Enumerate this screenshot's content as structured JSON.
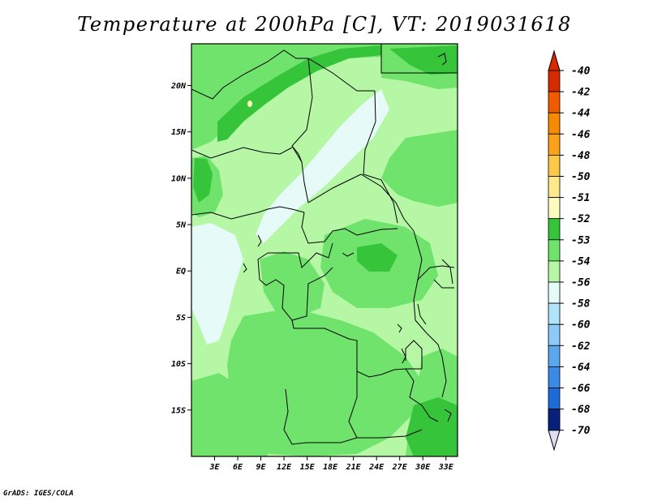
{
  "title": "Temperature at 200hPa [C], VT: 2019031618",
  "credit": "GrADS: IGES/COLA",
  "map": {
    "lat_ticks": [
      {
        "label": "20N",
        "value": 20
      },
      {
        "label": "15N",
        "value": 15
      },
      {
        "label": "10N",
        "value": 10
      },
      {
        "label": "5N",
        "value": 5
      },
      {
        "label": "EQ",
        "value": 0
      },
      {
        "label": "5S",
        "value": -5
      },
      {
        "label": "10S",
        "value": -10
      },
      {
        "label": "15S",
        "value": -15
      }
    ],
    "lon_ticks": [
      {
        "label": "3E",
        "value": 3
      },
      {
        "label": "6E",
        "value": 6
      },
      {
        "label": "9E",
        "value": 9
      },
      {
        "label": "12E",
        "value": 12
      },
      {
        "label": "15E",
        "value": 15
      },
      {
        "label": "18E",
        "value": 18
      },
      {
        "label": "21E",
        "value": 21
      },
      {
        "label": "24E",
        "value": 24
      },
      {
        "label": "27E",
        "value": 27
      },
      {
        "label": "30E",
        "value": 30
      },
      {
        "label": "33E",
        "value": 33
      }
    ],
    "extent": {
      "lon_min": 0,
      "lon_max": 34.5,
      "lat_min": -20,
      "lat_max": 24.5
    }
  },
  "colorbar": {
    "levels": [
      {
        "label": "-40",
        "color": "#d62b00"
      },
      {
        "label": "-42",
        "color": "#f05b00"
      },
      {
        "label": "-44",
        "color": "#f78a00"
      },
      {
        "label": "-46",
        "color": "#fba219"
      },
      {
        "label": "-48",
        "color": "#fcc94b"
      },
      {
        "label": "-50",
        "color": "#fde88c"
      },
      {
        "label": "-51",
        "color": "#fdfbc0"
      },
      {
        "label": "-52",
        "color": "#36c43b"
      },
      {
        "label": "-53",
        "color": "#6fe36b"
      },
      {
        "label": "-54",
        "color": "#b6f7a6"
      },
      {
        "label": "-56",
        "color": "#e6fbf8"
      },
      {
        "label": "-58",
        "color": "#b2e3fb"
      },
      {
        "label": "-60",
        "color": "#8ccaf7"
      },
      {
        "label": "-62",
        "color": "#5ba8ef"
      },
      {
        "label": "-64",
        "color": "#3b8be6"
      },
      {
        "label": "-66",
        "color": "#1e6ad6"
      },
      {
        "label": "-68",
        "color": "#0c4bb9"
      },
      {
        "label": "-70",
        "color": "#07207c"
      }
    ],
    "top_arrow_color": "#d62b00",
    "bottom_arrow_color": "#ddddf4"
  },
  "field_colors": {
    "base": "#b6f7a6",
    "mid": "#6fe36b",
    "dark": "#36c43b",
    "light": "#e6fbf8",
    "warm": "#fdfbc0"
  }
}
